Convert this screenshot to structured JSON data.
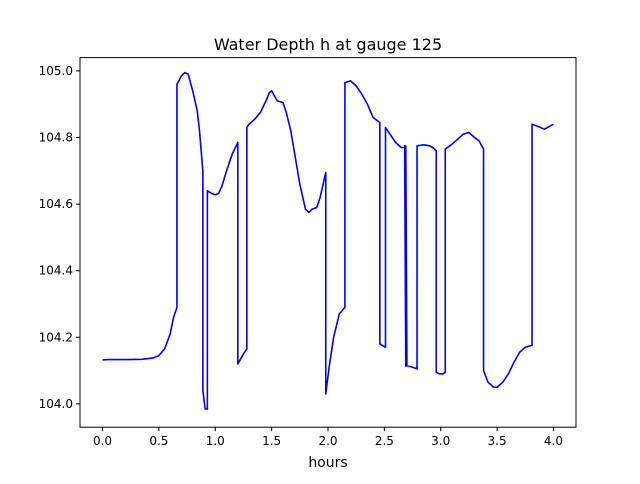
{
  "chart_data": {
    "type": "line",
    "title": "Water Depth h at gauge 125",
    "xlabel": "hours",
    "ylabel": "",
    "xlim": [
      -0.2,
      4.2
    ],
    "ylim": [
      103.93,
      105.04
    ],
    "xticks": [
      0.0,
      0.5,
      1.0,
      1.5,
      2.0,
      2.5,
      3.0,
      3.5,
      4.0
    ],
    "xtick_labels": [
      "0.0",
      "0.5",
      "1.0",
      "1.5",
      "2.0",
      "2.5",
      "3.0",
      "3.5",
      "4.0"
    ],
    "yticks": [
      104.0,
      104.2,
      104.4,
      104.6,
      104.8,
      105.0
    ],
    "ytick_labels": [
      "104.0",
      "104.2",
      "104.4",
      "104.6",
      "104.8",
      "105.0"
    ],
    "grid": false,
    "legend": "none",
    "series": [
      {
        "color": "#0000ff",
        "x": [
          0.0,
          0.05,
          0.2,
          0.35,
          0.45,
          0.5,
          0.55,
          0.6,
          0.63,
          0.66,
          0.66,
          0.7,
          0.73,
          0.76,
          0.8,
          0.84,
          0.86,
          0.89,
          0.89,
          0.91,
          0.93,
          0.93,
          0.97,
          1.0,
          1.03,
          1.06,
          1.1,
          1.15,
          1.2,
          1.2,
          1.25,
          1.28,
          1.28,
          1.3,
          1.35,
          1.4,
          1.45,
          1.48,
          1.5,
          1.55,
          1.6,
          1.63,
          1.67,
          1.7,
          1.75,
          1.8,
          1.83,
          1.86,
          1.9,
          1.93,
          1.95,
          1.98,
          1.98,
          2.01,
          2.05,
          2.1,
          2.15,
          2.15,
          2.2,
          2.25,
          2.3,
          2.35,
          2.4,
          2.46,
          2.46,
          2.51,
          2.51,
          2.55,
          2.6,
          2.65,
          2.68,
          2.68,
          2.69,
          2.69,
          2.7,
          2.7,
          2.75,
          2.79,
          2.79,
          2.85,
          2.9,
          2.93,
          2.96,
          2.96,
          2.99,
          3.02,
          3.04,
          3.04,
          3.1,
          3.15,
          3.2,
          3.25,
          3.3,
          3.34,
          3.38,
          3.38,
          3.42,
          3.47,
          3.5,
          3.55,
          3.6,
          3.65,
          3.7,
          3.75,
          3.8,
          3.81,
          3.81,
          3.85,
          3.92,
          4.0
        ],
        "y": [
          104.132,
          104.133,
          104.133,
          104.134,
          104.138,
          104.145,
          104.165,
          104.21,
          104.26,
          104.29,
          104.96,
          104.985,
          104.995,
          104.99,
          104.94,
          104.88,
          104.82,
          104.7,
          104.04,
          103.985,
          103.985,
          104.64,
          104.632,
          104.628,
          104.632,
          104.655,
          104.7,
          104.75,
          104.785,
          104.12,
          104.15,
          104.165,
          104.83,
          104.84,
          104.855,
          104.875,
          104.91,
          104.935,
          104.94,
          104.91,
          104.905,
          104.875,
          104.82,
          104.76,
          104.66,
          104.585,
          104.575,
          104.585,
          104.59,
          104.62,
          104.65,
          104.695,
          104.03,
          104.11,
          104.2,
          104.27,
          104.29,
          104.965,
          104.97,
          104.955,
          104.93,
          104.9,
          104.86,
          104.845,
          104.18,
          104.17,
          104.83,
          104.81,
          104.785,
          104.77,
          104.77,
          104.775,
          104.113,
          104.775,
          104.115,
          104.115,
          104.11,
          104.105,
          104.775,
          104.778,
          104.775,
          104.77,
          104.76,
          104.095,
          104.09,
          104.09,
          104.095,
          104.765,
          104.78,
          104.795,
          104.81,
          104.815,
          104.8,
          104.79,
          104.765,
          104.1,
          104.065,
          104.05,
          104.05,
          104.065,
          104.09,
          104.125,
          104.155,
          104.17,
          104.175,
          104.175,
          104.84,
          104.835,
          104.825,
          104.84
        ]
      }
    ]
  }
}
